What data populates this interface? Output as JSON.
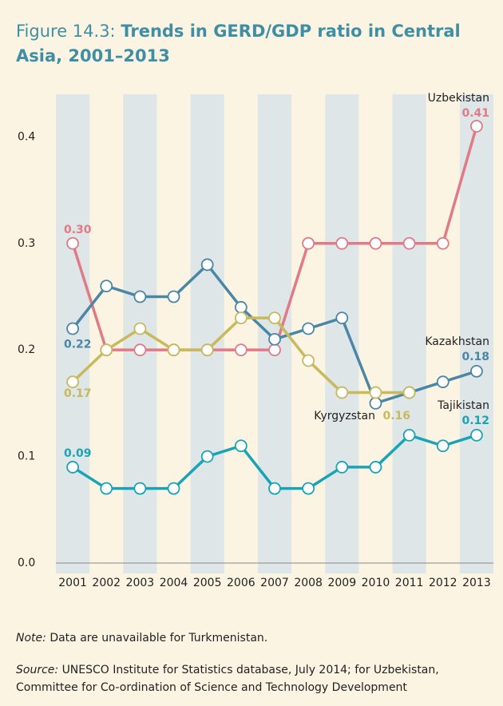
{
  "chart_data": {
    "type": "line",
    "title_prefix": "Figure 14.3:",
    "title": "Trends in GERD/GDP ratio in Central Asia, 2001–2013",
    "categories": [
      "2001",
      "2002",
      "2003",
      "2004",
      "2005",
      "2006",
      "2007",
      "2008",
      "2009",
      "2010",
      "2011",
      "2012",
      "2013"
    ],
    "ylim": [
      0,
      0.44
    ],
    "yticks": [
      {
        "value": 0,
        "label": "0.0"
      },
      0.1,
      0.2,
      0.3,
      0.4
    ],
    "grid": false,
    "series": [
      {
        "name": "Uzbekistan",
        "color": "#e07a86",
        "values": [
          0.3,
          0.2,
          0.2,
          0.2,
          0.2,
          0.2,
          0.2,
          0.3,
          0.3,
          0.3,
          0.3,
          0.3,
          0.41
        ],
        "value_labels": [
          "0.30",
          null,
          null,
          null,
          null,
          null,
          null,
          null,
          null,
          null,
          null,
          null,
          "0.41"
        ]
      },
      {
        "name": "Kazakhstan",
        "color": "#4a87a6",
        "values": [
          0.22,
          0.26,
          0.25,
          0.25,
          0.28,
          0.24,
          0.21,
          0.22,
          0.23,
          0.15,
          0.16,
          0.17,
          0.18
        ],
        "value_labels": [
          "0.22",
          null,
          null,
          null,
          null,
          null,
          null,
          null,
          null,
          null,
          null,
          null,
          "0.18"
        ]
      },
      {
        "name": "Kyrgyzstan",
        "color": "#c7b95c",
        "values": [
          0.17,
          0.2,
          0.22,
          0.2,
          0.2,
          0.23,
          0.23,
          0.19,
          0.16,
          0.16,
          0.16,
          null,
          null
        ],
        "value_labels": [
          "0.17",
          null,
          null,
          null,
          null,
          null,
          null,
          null,
          null,
          "0.16",
          null,
          null,
          null
        ]
      },
      {
        "name": "Tajikistan",
        "color": "#19a3b6",
        "values": [
          0.09,
          0.07,
          0.07,
          0.07,
          0.1,
          0.11,
          0.07,
          0.07,
          0.09,
          0.09,
          0.12,
          0.11,
          0.12
        ],
        "value_labels": [
          "0.09",
          null,
          null,
          null,
          null,
          null,
          null,
          null,
          null,
          null,
          null,
          null,
          "0.12"
        ]
      }
    ],
    "note": {
      "label": "Note:",
      "text": "Data are unavailable for Turkmenistan."
    },
    "source": {
      "label": "Source:",
      "text": "UNESCO Institute for Statistics database, July 2014; for Uzbekistan, Committee for Co-ordination of Science and Technology Development"
    }
  }
}
